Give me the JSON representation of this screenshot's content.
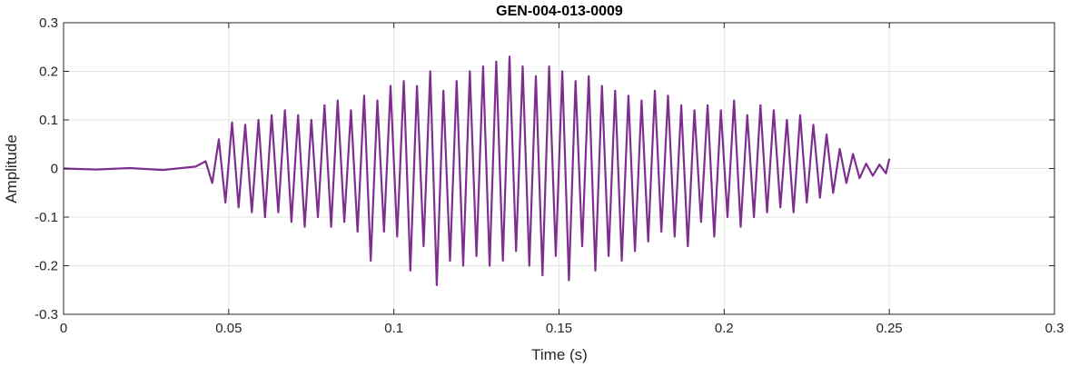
{
  "chart_data": {
    "type": "line",
    "title": "GEN-004-013-0009",
    "xlabel": "Time (s)",
    "ylabel": "Amplitude",
    "xlim": [
      0,
      0.3
    ],
    "ylim": [
      -0.3,
      0.3
    ],
    "xticks": [
      0,
      0.05,
      0.1,
      0.15,
      0.2,
      0.25,
      0.3
    ],
    "xtick_labels": [
      "0",
      "0.05",
      "0.1",
      "0.15",
      "0.2",
      "0.25",
      "0.3"
    ],
    "yticks": [
      -0.3,
      -0.2,
      -0.1,
      0,
      0.1,
      0.2,
      0.3
    ],
    "ytick_labels": [
      "-0.3",
      "-0.2",
      "-0.1",
      "0",
      "0.1",
      "0.2",
      "0.3"
    ],
    "grid": true,
    "legend": "none",
    "series": [
      {
        "color": "#7E2F8E",
        "x": [
          0,
          0.01,
          0.02,
          0.03,
          0.04,
          0.043,
          0.045,
          0.047,
          0.049,
          0.051,
          0.053,
          0.055,
          0.057,
          0.059,
          0.061,
          0.063,
          0.065,
          0.067,
          0.069,
          0.071,
          0.073,
          0.075,
          0.077,
          0.079,
          0.081,
          0.083,
          0.085,
          0.087,
          0.089,
          0.091,
          0.093,
          0.095,
          0.097,
          0.099,
          0.101,
          0.103,
          0.105,
          0.107,
          0.109,
          0.111,
          0.113,
          0.115,
          0.117,
          0.119,
          0.121,
          0.123,
          0.125,
          0.127,
          0.129,
          0.131,
          0.133,
          0.135,
          0.137,
          0.139,
          0.141,
          0.143,
          0.145,
          0.147,
          0.149,
          0.151,
          0.153,
          0.155,
          0.157,
          0.159,
          0.161,
          0.163,
          0.165,
          0.167,
          0.169,
          0.171,
          0.173,
          0.175,
          0.177,
          0.179,
          0.181,
          0.183,
          0.185,
          0.187,
          0.189,
          0.191,
          0.193,
          0.195,
          0.197,
          0.199,
          0.201,
          0.203,
          0.205,
          0.207,
          0.209,
          0.211,
          0.213,
          0.215,
          0.217,
          0.219,
          0.221,
          0.223,
          0.225,
          0.227,
          0.229,
          0.231,
          0.233,
          0.235,
          0.237,
          0.239,
          0.241,
          0.243,
          0.245,
          0.247,
          0.249,
          0.25
        ],
        "y": [
          0,
          -0.002,
          0.001,
          -0.003,
          0.004,
          0.015,
          -0.03,
          0.06,
          -0.07,
          0.095,
          -0.08,
          0.09,
          -0.09,
          0.1,
          -0.1,
          0.11,
          -0.09,
          0.12,
          -0.11,
          0.11,
          -0.12,
          0.1,
          -0.1,
          0.13,
          -0.12,
          0.14,
          -0.11,
          0.12,
          -0.13,
          0.15,
          -0.19,
          0.14,
          -0.13,
          0.17,
          -0.14,
          0.18,
          -0.21,
          0.17,
          -0.16,
          0.2,
          -0.24,
          0.16,
          -0.19,
          0.18,
          -0.2,
          0.2,
          -0.18,
          0.21,
          -0.2,
          0.22,
          -0.19,
          0.23,
          -0.17,
          0.21,
          -0.2,
          0.19,
          -0.22,
          0.21,
          -0.18,
          0.2,
          -0.23,
          0.18,
          -0.16,
          0.19,
          -0.21,
          0.17,
          -0.18,
          0.16,
          -0.19,
          0.15,
          -0.17,
          0.14,
          -0.15,
          0.16,
          -0.13,
          0.15,
          -0.14,
          0.13,
          -0.16,
          0.12,
          -0.11,
          0.13,
          -0.14,
          0.12,
          -0.1,
          0.14,
          -0.12,
          0.11,
          -0.1,
          0.13,
          -0.09,
          0.12,
          -0.08,
          0.1,
          -0.09,
          0.11,
          -0.07,
          0.09,
          -0.06,
          0.07,
          -0.05,
          0.04,
          -0.03,
          0.03,
          -0.02,
          0.01,
          -0.015,
          0.008,
          -0.01,
          0.02
        ]
      }
    ]
  }
}
